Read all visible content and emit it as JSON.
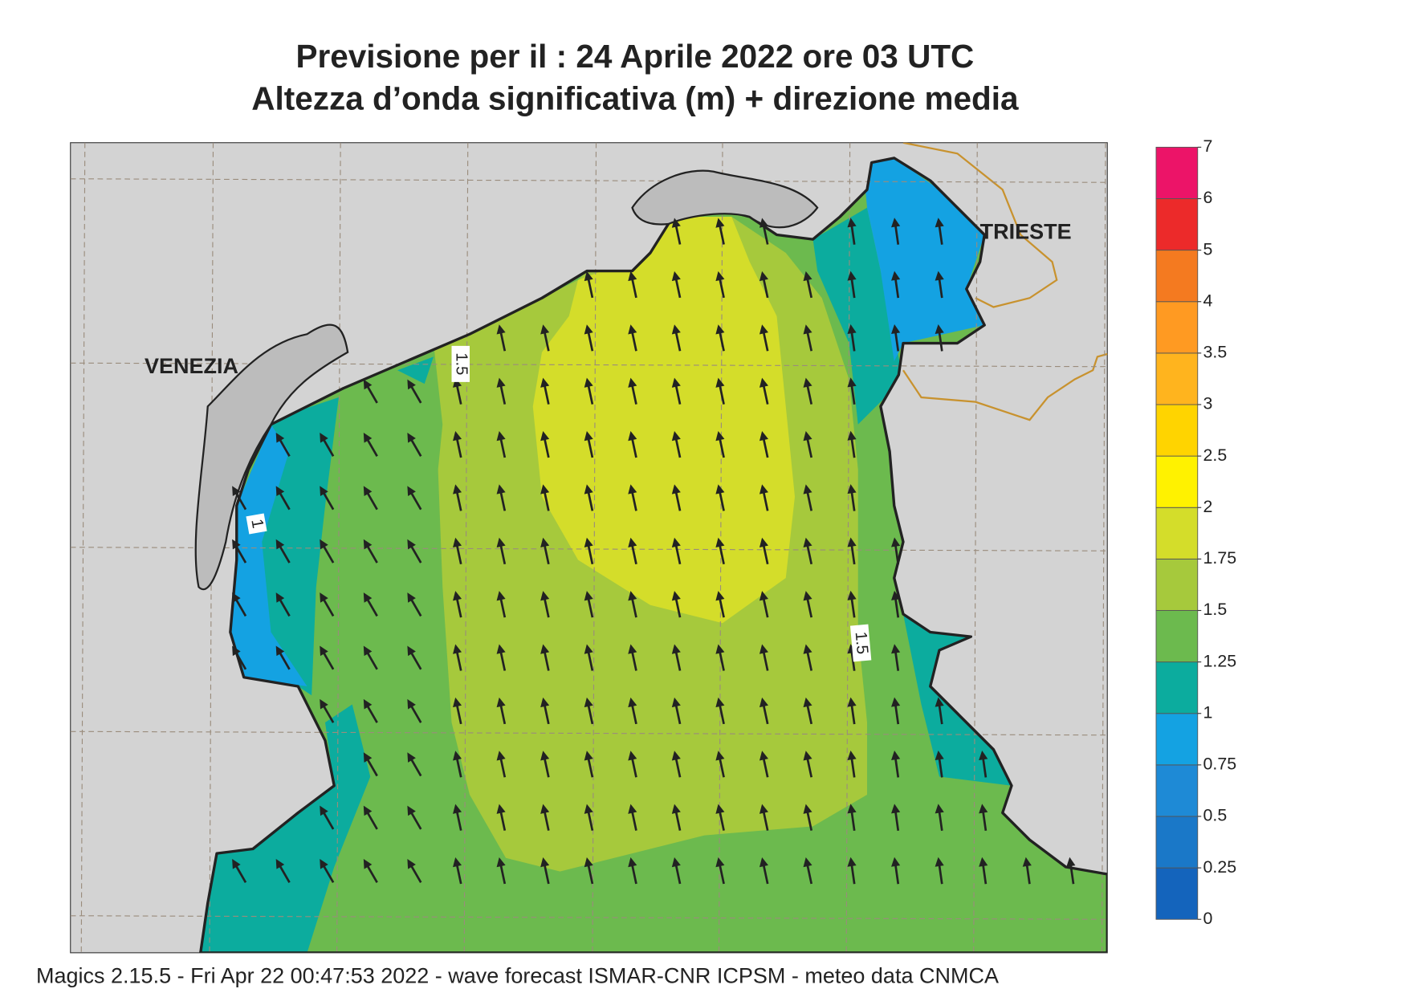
{
  "title": [
    "Previsione per il  :  24   Aprile  2022   ore 03 UTC",
    "Altezza d’onda significativa (m) + direzione media"
  ],
  "places": [
    {
      "label": "VENEZIA"
    },
    {
      "label": "TRIESTE"
    }
  ],
  "contour_labels": [
    "1",
    "1.5",
    "1.5"
  ],
  "colorbar": {
    "levels": [
      0,
      0.25,
      0.5,
      0.75,
      1,
      1.25,
      1.5,
      1.75,
      2,
      2.5,
      3,
      3.5,
      4,
      5,
      6,
      7
    ],
    "colors": [
      "#1464bc",
      "#1a78c8",
      "#1e8ad6",
      "#14a2e2",
      "#0cac9e",
      "#6cba4e",
      "#a6c93c",
      "#d4dd2a",
      "#fff200",
      "#ffd400",
      "#ffb41e",
      "#ff9a22",
      "#f47a20",
      "#ec2a2a",
      "#ec1468"
    ]
  },
  "footer": "Magics 2.15.5 - Fri Apr 22 00:47:53 2022 - wave forecast  ISMAR-CNR  ICPSM - meteo data   CNMCA"
}
